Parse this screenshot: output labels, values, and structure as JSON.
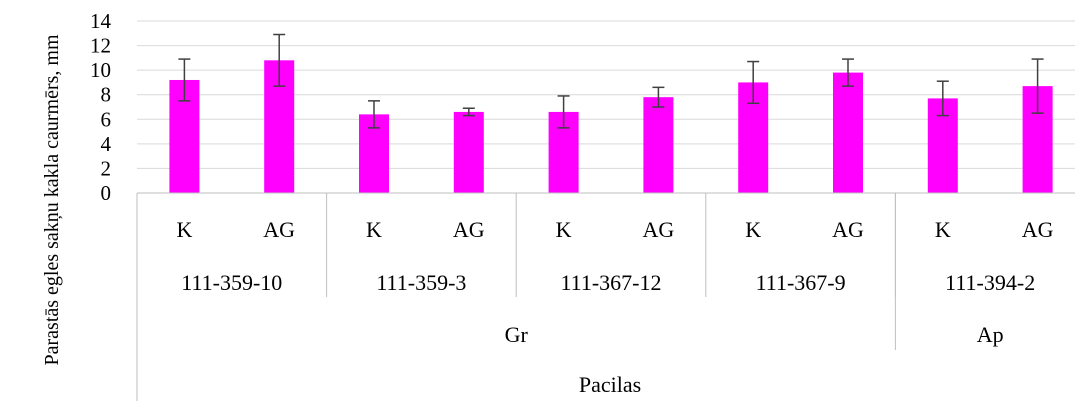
{
  "chart_data": {
    "type": "bar",
    "ylabel": "Parastās egles sakņu kakla caurmērs, mm",
    "xlabel": "Pacilas",
    "ylim": [
      0,
      14
    ],
    "yticks": [
      0,
      2,
      4,
      6,
      8,
      10,
      12,
      14
    ],
    "grid": "horizontal",
    "bar_color": "#ff00ff",
    "categories": [
      "K",
      "AG",
      "K",
      "AG",
      "K",
      "AG",
      "K",
      "AG",
      "K",
      "AG"
    ],
    "values": [
      9.2,
      10.8,
      6.4,
      6.6,
      6.6,
      7.8,
      9.0,
      9.8,
      7.7,
      8.7
    ],
    "error_upper": [
      10.9,
      12.9,
      7.5,
      6.9,
      7.9,
      8.6,
      10.7,
      10.9,
      9.1,
      10.9
    ],
    "error_lower": [
      7.5,
      8.7,
      5.3,
      6.3,
      5.3,
      7.0,
      7.3,
      8.7,
      6.3,
      6.5
    ],
    "groups": [
      {
        "label": "111-359-10",
        "span": [
          0,
          1
        ]
      },
      {
        "label": "111-359-3",
        "span": [
          2,
          3
        ]
      },
      {
        "label": "111-367-12",
        "span": [
          4,
          5
        ]
      },
      {
        "label": "111-367-9",
        "span": [
          6,
          7
        ]
      },
      {
        "label": "111-394-2",
        "span": [
          8,
          9
        ]
      }
    ],
    "supergroups": [
      {
        "label": "Gr",
        "span": [
          0,
          7
        ]
      },
      {
        "label": "Ap",
        "span": [
          8,
          9
        ]
      }
    ]
  }
}
